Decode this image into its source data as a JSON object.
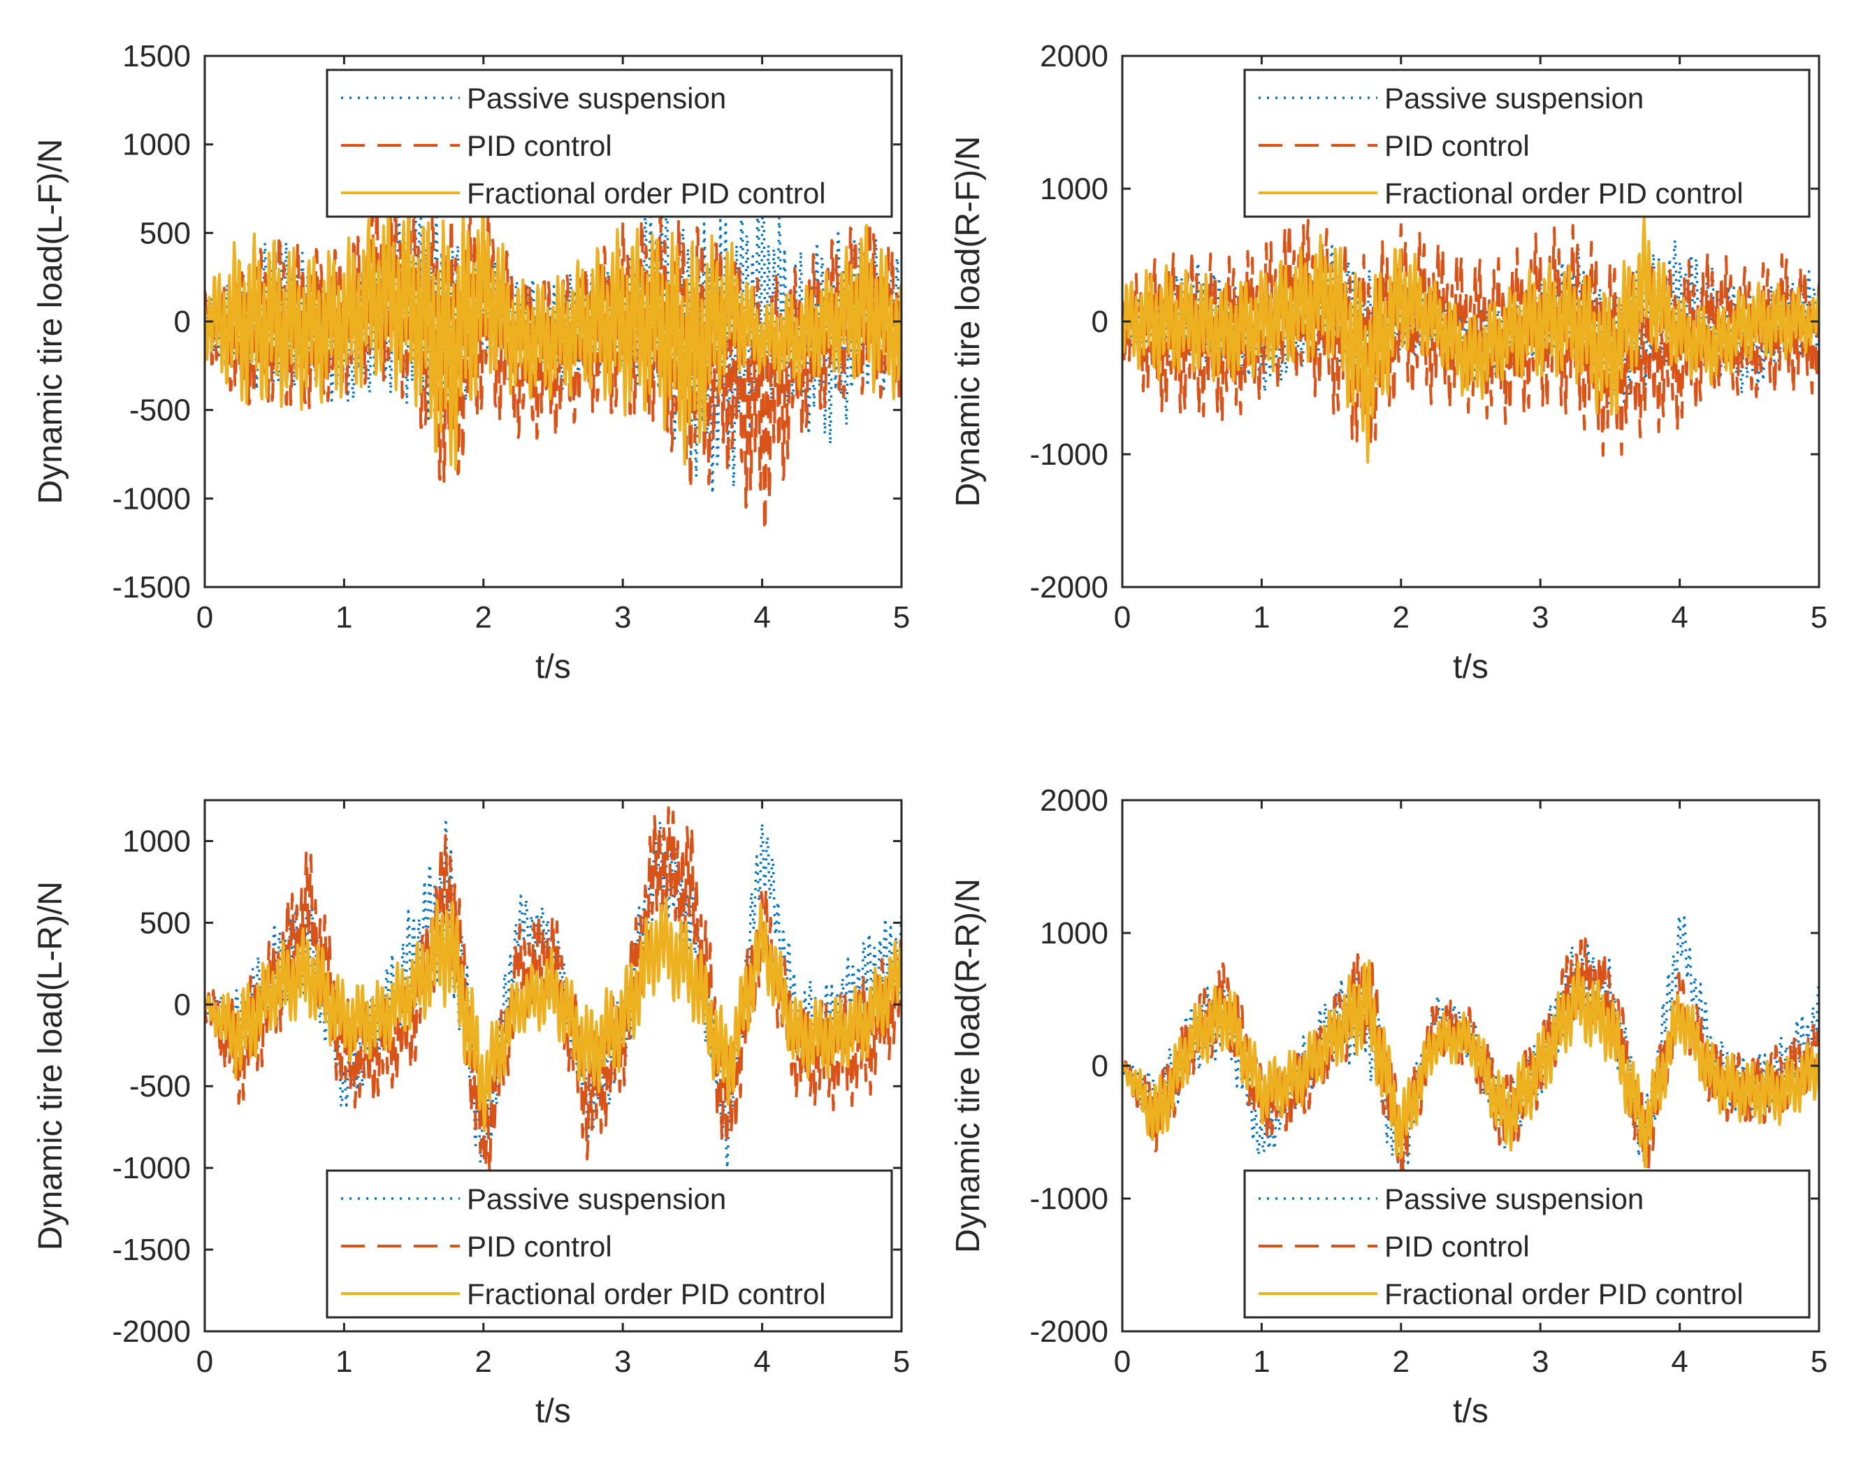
{
  "legend_entries": [
    "Passive suspension",
    "PID control",
    "Fractional order PID control"
  ],
  "colors": {
    "passive": "#0072BD",
    "pid": "#D95319",
    "fopid": "#EDB120",
    "axes": "#262626"
  },
  "chart_data": [
    {
      "type": "line",
      "xlabel": "t/s",
      "ylabel": "Dynamic tire load(L-F)/N",
      "xlim": [
        0,
        5
      ],
      "ylim": [
        -1500,
        1500
      ],
      "xticks": [
        "0",
        "1",
        "2",
        "3",
        "4",
        "5"
      ],
      "yticks": [
        "-1500",
        "-1000",
        "-500",
        "0",
        "500",
        "1000",
        "1500"
      ],
      "legend_position": "top-right",
      "grid": false,
      "series": [
        {
          "name": "Passive suspension",
          "x": [
            0,
            0.25,
            0.5,
            0.75,
            1,
            1.25,
            1.5,
            1.75,
            2,
            2.25,
            2.5,
            2.75,
            3,
            3.25,
            3.5,
            3.75,
            4,
            4.25,
            4.5,
            4.75,
            5
          ],
          "amp": [
            150,
            300,
            500,
            350,
            300,
            400,
            700,
            600,
            300,
            150,
            350,
            300,
            300,
            650,
            700,
            900,
            600,
            500,
            650,
            450,
            400
          ],
          "mean": [
            0,
            -50,
            50,
            0,
            -200,
            0,
            200,
            -100,
            100,
            100,
            -100,
            0,
            0,
            200,
            -200,
            -200,
            200,
            -100,
            -100,
            50,
            0
          ]
        },
        {
          "name": "PID control",
          "x": [
            0,
            0.25,
            0.5,
            0.75,
            1,
            1.25,
            1.5,
            1.75,
            2,
            2.25,
            2.5,
            2.75,
            3,
            3.25,
            3.5,
            3.75,
            4,
            4.25,
            4.5,
            4.75,
            5
          ],
          "amp": [
            200,
            400,
            550,
            500,
            450,
            550,
            650,
            900,
            650,
            500,
            500,
            450,
            600,
            650,
            850,
            700,
            800,
            550,
            500,
            550,
            450
          ],
          "mean": [
            0,
            -100,
            0,
            -50,
            0,
            200,
            100,
            -250,
            100,
            -200,
            -200,
            -100,
            0,
            0,
            -200,
            -200,
            -500,
            -200,
            0,
            100,
            -50
          ]
        },
        {
          "name": "Fractional order PID control",
          "x": [
            0,
            0.25,
            0.5,
            0.75,
            1,
            1.25,
            1.5,
            1.75,
            2,
            2.25,
            2.5,
            2.75,
            3,
            3.25,
            3.5,
            3.75,
            4,
            4.25,
            4.5,
            4.75,
            5
          ],
          "amp": [
            200,
            500,
            500,
            450,
            450,
            500,
            550,
            800,
            500,
            350,
            350,
            400,
            550,
            550,
            700,
            400,
            200,
            300,
            300,
            500,
            350
          ],
          "mean": [
            0,
            0,
            0,
            -50,
            0,
            150,
            100,
            -200,
            200,
            -100,
            -100,
            0,
            0,
            0,
            -200,
            100,
            -100,
            -100,
            0,
            100,
            -100
          ]
        }
      ]
    },
    {
      "type": "line",
      "xlabel": "t/s",
      "ylabel": "Dynamic tire load(R-F)/N",
      "xlim": [
        0,
        5
      ],
      "ylim": [
        -2000,
        2000
      ],
      "xticks": [
        "0",
        "1",
        "2",
        "3",
        "4",
        "5"
      ],
      "yticks": [
        "-2000",
        "-1000",
        "0",
        "1000",
        "2000"
      ],
      "legend_position": "top-right",
      "grid": false,
      "series": [
        {
          "name": "Passive suspension",
          "x": [
            0,
            0.25,
            0.5,
            0.75,
            1,
            1.25,
            1.5,
            1.75,
            2,
            2.25,
            2.5,
            2.75,
            3,
            3.25,
            3.5,
            3.75,
            4,
            4.25,
            4.5,
            4.75,
            5
          ],
          "amp": [
            150,
            300,
            400,
            350,
            250,
            300,
            400,
            500,
            300,
            200,
            300,
            300,
            300,
            400,
            450,
            500,
            450,
            400,
            400,
            350,
            300
          ],
          "mean": [
            0,
            -100,
            100,
            0,
            -300,
            -100,
            200,
            -100,
            0,
            0,
            -200,
            -100,
            0,
            200,
            -300,
            0,
            200,
            0,
            -200,
            0,
            100
          ]
        },
        {
          "name": "PID control",
          "x": [
            0,
            0.25,
            0.5,
            0.75,
            1,
            1.25,
            1.5,
            1.75,
            2,
            2.25,
            2.5,
            2.75,
            3,
            3.25,
            3.5,
            3.75,
            4,
            4.25,
            4.5,
            4.75,
            5
          ],
          "amp": [
            300,
            600,
            650,
            650,
            600,
            650,
            700,
            800,
            650,
            650,
            600,
            650,
            700,
            750,
            800,
            650,
            650,
            550,
            500,
            550,
            450
          ],
          "mean": [
            0,
            -100,
            -100,
            -150,
            0,
            200,
            0,
            -300,
            100,
            0,
            -100,
            -150,
            0,
            0,
            -300,
            -200,
            -200,
            0,
            -100,
            0,
            -100
          ]
        },
        {
          "name": "Fractional order PID control",
          "x": [
            0,
            0.25,
            0.5,
            0.75,
            1,
            1.25,
            1.5,
            1.75,
            2,
            2.25,
            2.5,
            2.75,
            3,
            3.25,
            3.5,
            3.75,
            4,
            4.25,
            4.5,
            4.75,
            5
          ],
          "amp": [
            300,
            450,
            400,
            400,
            400,
            450,
            500,
            700,
            450,
            300,
            350,
            350,
            450,
            450,
            550,
            500,
            300,
            300,
            300,
            300,
            200
          ],
          "mean": [
            0,
            0,
            0,
            -100,
            0,
            100,
            200,
            -400,
            200,
            0,
            -300,
            -100,
            0,
            0,
            -300,
            300,
            -100,
            -200,
            0,
            0,
            0
          ]
        }
      ]
    },
    {
      "type": "line",
      "xlabel": "t/s",
      "ylabel": "Dynamic tire load(L-R)/N",
      "xlim": [
        0,
        5
      ],
      "ylim": [
        -2000,
        1250
      ],
      "xticks": [
        "0",
        "1",
        "2",
        "3",
        "4",
        "5"
      ],
      "yticks": [
        "-2000",
        "-1500",
        "-1000",
        "-500",
        "0",
        "500",
        "1000"
      ],
      "legend_position": "bottom-right",
      "grid": false,
      "series": [
        {
          "name": "Passive suspension",
          "x": [
            0,
            0.25,
            0.5,
            0.75,
            1,
            1.25,
            1.5,
            1.75,
            2,
            2.25,
            2.5,
            2.75,
            3,
            3.25,
            3.5,
            3.75,
            4,
            4.25,
            4.5,
            4.75,
            5
          ],
          "amp": [
            50,
            200,
            300,
            300,
            200,
            250,
            350,
            500,
            300,
            200,
            150,
            250,
            300,
            300,
            250,
            250,
            250,
            250,
            250,
            250,
            300
          ],
          "mean": [
            0,
            -100,
            200,
            400,
            -500,
            -100,
            300,
            700,
            -900,
            500,
            400,
            -600,
            -200,
            900,
            500,
            -800,
            1000,
            -100,
            -100,
            200,
            300
          ]
        },
        {
          "name": "PID control",
          "x": [
            0,
            0.25,
            0.5,
            0.75,
            1,
            1.25,
            1.5,
            1.75,
            2,
            2.25,
            2.5,
            2.75,
            3,
            3.25,
            3.5,
            3.75,
            4,
            4.25,
            4.5,
            4.75,
            5
          ],
          "amp": [
            100,
            350,
            350,
            400,
            350,
            300,
            300,
            400,
            350,
            300,
            300,
            400,
            350,
            400,
            400,
            400,
            300,
            300,
            350,
            400,
            300
          ],
          "mean": [
            0,
            -300,
            100,
            600,
            -300,
            -300,
            -100,
            800,
            -900,
            200,
            300,
            -600,
            -200,
            900,
            700,
            -700,
            500,
            -300,
            -300,
            -200,
            100
          ]
        },
        {
          "name": "Fractional order PID control",
          "x": [
            0,
            0.25,
            0.5,
            0.75,
            1,
            1.25,
            1.5,
            1.75,
            2,
            2.25,
            2.5,
            2.75,
            3,
            3.25,
            3.5,
            3.75,
            4,
            4.25,
            4.5,
            4.75,
            5
          ],
          "amp": [
            50,
            300,
            250,
            300,
            250,
            250,
            250,
            400,
            300,
            200,
            250,
            300,
            300,
            300,
            300,
            300,
            250,
            250,
            250,
            250,
            250
          ],
          "mean": [
            0,
            -200,
            100,
            200,
            -100,
            -100,
            100,
            400,
            -500,
            0,
            100,
            -300,
            -100,
            400,
            200,
            -400,
            400,
            -200,
            -200,
            -100,
            200
          ]
        }
      ]
    },
    {
      "type": "line",
      "xlabel": "t/s",
      "ylabel": "Dynamic tire load(R-R)/N",
      "xlim": [
        0,
        5
      ],
      "ylim": [
        -2000,
        2000
      ],
      "xticks": [
        "0",
        "1",
        "2",
        "3",
        "4",
        "5"
      ],
      "yticks": [
        "-2000",
        "-1000",
        "0",
        "1000",
        "2000"
      ],
      "legend_position": "bottom-right",
      "grid": false,
      "series": [
        {
          "name": "Passive suspension",
          "x": [
            0,
            0.25,
            0.5,
            0.75,
            1,
            1.25,
            1.5,
            1.75,
            2,
            2.25,
            2.5,
            2.75,
            3,
            3.25,
            3.5,
            3.75,
            4,
            4.25,
            4.5,
            4.75,
            5
          ],
          "amp": [
            50,
            250,
            300,
            300,
            200,
            250,
            300,
            400,
            300,
            150,
            200,
            250,
            250,
            300,
            300,
            300,
            250,
            250,
            250,
            250,
            300
          ],
          "mean": [
            0,
            -300,
            200,
            400,
            -600,
            -100,
            300,
            400,
            -700,
            400,
            200,
            -400,
            0,
            700,
            500,
            -600,
            1000,
            0,
            -200,
            0,
            300
          ]
        },
        {
          "name": "PID control",
          "x": [
            0,
            0.25,
            0.5,
            0.75,
            1,
            1.25,
            1.5,
            1.75,
            2,
            2.25,
            2.5,
            2.75,
            3,
            3.25,
            3.5,
            3.75,
            4,
            4.25,
            4.5,
            4.75,
            5
          ],
          "amp": [
            50,
            300,
            300,
            350,
            300,
            300,
            300,
            450,
            350,
            250,
            250,
            350,
            300,
            350,
            350,
            350,
            250,
            300,
            300,
            300,
            250
          ],
          "mean": [
            0,
            -400,
            200,
            500,
            -300,
            -200,
            200,
            600,
            -600,
            300,
            200,
            -400,
            0,
            700,
            500,
            -600,
            500,
            -100,
            -200,
            -100,
            100
          ]
        },
        {
          "name": "Fractional order PID control",
          "x": [
            0,
            0.25,
            0.5,
            0.75,
            1,
            1.25,
            1.5,
            1.75,
            2,
            2.25,
            2.5,
            2.75,
            3,
            3.25,
            3.5,
            3.75,
            4,
            4.25,
            4.5,
            4.75,
            5
          ],
          "amp": [
            50,
            300,
            250,
            300,
            250,
            250,
            250,
            400,
            300,
            200,
            200,
            300,
            300,
            300,
            300,
            300,
            250,
            250,
            250,
            250,
            250
          ],
          "mean": [
            0,
            -400,
            200,
            400,
            -200,
            -100,
            200,
            500,
            -500,
            200,
            200,
            -400,
            0,
            500,
            300,
            -500,
            400,
            -100,
            -200,
            -200,
            0
          ]
        }
      ]
    }
  ]
}
